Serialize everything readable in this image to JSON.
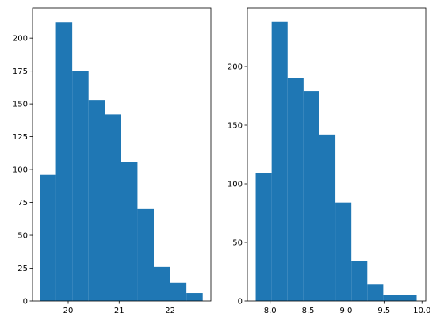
{
  "chart_data": [
    {
      "type": "bar",
      "title": "",
      "xlabel": "",
      "ylabel": "",
      "color": "#1f77b4",
      "grid": false,
      "xlim": [
        19.3,
        22.8
      ],
      "ylim": [
        0,
        223
      ],
      "bins": [
        {
          "x0": 19.44,
          "x1": 19.76,
          "value": 96
        },
        {
          "x0": 19.76,
          "x1": 20.08,
          "value": 212
        },
        {
          "x0": 20.08,
          "x1": 20.4,
          "value": 175
        },
        {
          "x0": 20.4,
          "x1": 20.72,
          "value": 153
        },
        {
          "x0": 20.72,
          "x1": 21.04,
          "value": 142
        },
        {
          "x0": 21.04,
          "x1": 21.36,
          "value": 106
        },
        {
          "x0": 21.36,
          "x1": 21.68,
          "value": 70
        },
        {
          "x0": 21.68,
          "x1": 22.0,
          "value": 26
        },
        {
          "x0": 22.0,
          "x1": 22.32,
          "value": 14
        },
        {
          "x0": 22.32,
          "x1": 22.64,
          "value": 6
        }
      ],
      "xticks": [
        20,
        21,
        22
      ],
      "xtick_labels": [
        "20",
        "21",
        "22"
      ],
      "yticks": [
        0,
        25,
        50,
        75,
        100,
        125,
        150,
        175,
        200
      ],
      "ytick_labels": [
        "0",
        "25",
        "50",
        "75",
        "100",
        "125",
        "150",
        "175",
        "200"
      ]
    },
    {
      "type": "bar",
      "title": "",
      "xlabel": "",
      "ylabel": "",
      "color": "#1f77b4",
      "grid": false,
      "xlim": [
        7.7,
        10.05
      ],
      "ylim": [
        0,
        250
      ],
      "bins": [
        {
          "x0": 7.81,
          "x1": 8.02,
          "value": 109
        },
        {
          "x0": 8.02,
          "x1": 8.23,
          "value": 238
        },
        {
          "x0": 8.23,
          "x1": 8.44,
          "value": 190
        },
        {
          "x0": 8.44,
          "x1": 8.65,
          "value": 179
        },
        {
          "x0": 8.65,
          "x1": 8.86,
          "value": 142
        },
        {
          "x0": 8.86,
          "x1": 9.07,
          "value": 84
        },
        {
          "x0": 9.07,
          "x1": 9.28,
          "value": 34
        },
        {
          "x0": 9.28,
          "x1": 9.49,
          "value": 14
        },
        {
          "x0": 9.49,
          "x1": 9.7,
          "value": 5
        },
        {
          "x0": 9.7,
          "x1": 9.93,
          "value": 5
        }
      ],
      "xticks": [
        8.0,
        8.5,
        9.0,
        9.5,
        10.0
      ],
      "xtick_labels": [
        "8.0",
        "8.5",
        "9.0",
        "9.5",
        "10.0"
      ],
      "yticks": [
        0,
        50,
        100,
        150,
        200
      ],
      "ytick_labels": [
        "0",
        "50",
        "100",
        "150",
        "200"
      ]
    }
  ]
}
